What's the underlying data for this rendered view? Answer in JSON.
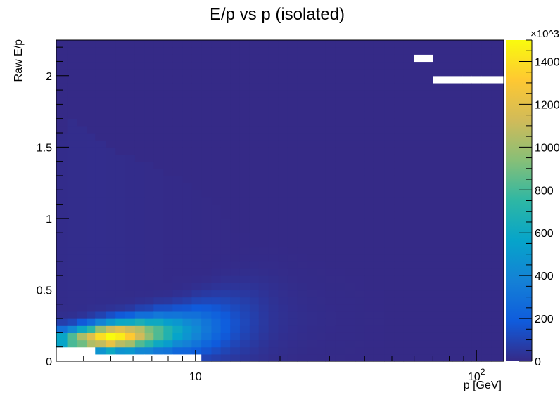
{
  "chart_data": {
    "type": "heatmap",
    "title": "E/p vs p (isolated)",
    "xlabel": "p [GeV]",
    "ylabel": "Raw E/p",
    "x_scale": "log",
    "xlim": [
      3.2,
      125
    ],
    "ylim": [
      0,
      2.25
    ],
    "x_ticks": [
      10,
      100
    ],
    "x_tick_labels": [
      "10",
      "10^2"
    ],
    "y_ticks": [
      0,
      0.5,
      1,
      1.5,
      2
    ],
    "y_tick_labels": [
      "0",
      "0.5",
      "1",
      "1.5",
      "2"
    ],
    "colorbar": {
      "range": [
        0,
        1500
      ],
      "multiplier": "×10^3",
      "ticks": [
        0,
        200,
        400,
        600,
        800,
        1000,
        1200,
        1400
      ],
      "tick_labels": [
        "0",
        "200",
        "400",
        "600",
        "800",
        "1000",
        "1200",
        "1400"
      ]
    },
    "palette": [
      "#352a87",
      "#0f5cdd",
      "#1481d6",
      "#06a4ca",
      "#2eb7a4",
      "#87bf77",
      "#d1bb59",
      "#fec832",
      "#f9fb0e"
    ],
    "background_color": "#2e3192",
    "n_y_bins": 45,
    "y_bin_width": 0.05,
    "x_bins": [
      3.2,
      3.5,
      3.8,
      4.1,
      4.4,
      4.8,
      5.2,
      5.6,
      6.1,
      6.6,
      7.1,
      7.7,
      8.3,
      9.0,
      9.7,
      10.5,
      11.4,
      12.3,
      13.3,
      14.4,
      15.6,
      16.8,
      18.2,
      19.7,
      21.3,
      23,
      25,
      27,
      29,
      31.5,
      34,
      37,
      40,
      43,
      47,
      51,
      55,
      60,
      65,
      70,
      76,
      82,
      89,
      96,
      104,
      113,
      125
    ],
    "column_profile": {
      "peak_y": [
        0.15,
        0.15,
        0.16,
        0.16,
        0.17,
        0.17,
        0.18,
        0.18,
        0.19,
        0.19,
        0.2,
        0.2,
        0.21,
        0.21,
        0.22,
        0.23,
        0.24,
        0.25,
        0.26,
        0.27,
        0.28,
        0.29,
        0.3,
        0.3,
        0.3,
        0.3,
        0.3,
        0.3,
        0.3,
        0.3,
        0.3,
        0.3,
        0.3,
        0.3,
        0.3,
        0.3,
        0.3,
        0.3,
        0.3,
        0.3,
        0.3,
        0.3,
        0.3,
        0.3,
        0.3,
        0.3
      ],
      "amplitude": [
        620,
        880,
        1050,
        1200,
        1380,
        1500,
        1450,
        1320,
        1150,
        980,
        850,
        720,
        600,
        500,
        420,
        330,
        260,
        200,
        150,
        110,
        80,
        55,
        35,
        25,
        18,
        14,
        10,
        8,
        6,
        5,
        4,
        3,
        2,
        2,
        1,
        1,
        1,
        1,
        1,
        1,
        1,
        1,
        1,
        1,
        1,
        1
      ],
      "spread": [
        0.06,
        0.06,
        0.06,
        0.065,
        0.065,
        0.07,
        0.07,
        0.075,
        0.08,
        0.085,
        0.09,
        0.095,
        0.1,
        0.11,
        0.12,
        0.13,
        0.14,
        0.15,
        0.16,
        0.17,
        0.18,
        0.19,
        0.2,
        0.2,
        0.2,
        0.2,
        0.2,
        0.2,
        0.2,
        0.2,
        0.2,
        0.2,
        0.2,
        0.2,
        0.2,
        0.2,
        0.2,
        0.2,
        0.2,
        0.2,
        0.2,
        0.2,
        0.2,
        0.2,
        0.2,
        0.2
      ],
      "tail": [
        9,
        10,
        11,
        12,
        12,
        11,
        10,
        9,
        8,
        7,
        6,
        5,
        5,
        4,
        3,
        2,
        2,
        2,
        1,
        1,
        1,
        0,
        0,
        0,
        0,
        0,
        0,
        0,
        0,
        0,
        0,
        0,
        0,
        0,
        0,
        0,
        0,
        0,
        0,
        0,
        0,
        0,
        0,
        0,
        0,
        0
      ],
      "tail_extent": [
        1.6,
        1.7,
        1.65,
        1.6,
        1.55,
        1.5,
        1.45,
        1.45,
        1.4,
        1.4,
        1.35,
        1.3,
        1.3,
        1.25,
        1.2,
        1.15,
        1.1,
        1.0,
        0.95,
        0.9,
        0.8,
        0.7,
        0.6,
        0.5,
        0.4,
        0.3,
        0.3,
        0.3,
        0.3,
        0.3,
        0.3,
        0.3,
        0.3,
        0.3,
        0.3,
        0.3,
        0.3,
        0.3,
        0.3,
        0.3,
        0.3,
        0.3,
        0.3,
        0.3,
        0.3,
        0.3
      ],
      "empty_below_y": [
        0.1,
        0.1,
        0.1,
        0.1,
        0.05,
        0.05,
        0.05,
        0.05,
        0.05,
        0.05,
        0.05,
        0.05,
        0.05,
        0.05,
        0.05,
        0.0,
        0.0,
        0.0,
        0.0,
        0.0,
        0.0,
        0.0,
        0.0,
        0.0,
        0.0,
        0.0,
        0.0,
        0.0,
        0.0,
        0.0,
        0.0,
        0.0,
        0.0,
        0.0,
        0.0,
        0.0,
        0.0,
        0.0,
        0.0,
        0.0,
        0.0,
        0.0,
        0.0,
        0.0,
        0.0,
        0.0
      ]
    },
    "empty_cells": [
      {
        "x0": 57,
        "x1": 70,
        "y0": 2.1,
        "y1": 2.15
      },
      {
        "x0": 70,
        "x1": 125,
        "y0": 1.95,
        "y1": 2.0
      }
    ]
  }
}
